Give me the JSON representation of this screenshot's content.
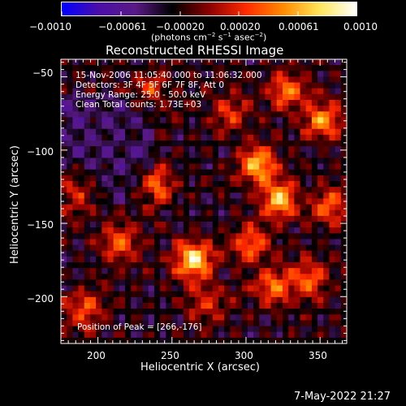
{
  "colorbar": {
    "ticks": [
      "−0.0010",
      "−0.00061",
      "−0.00020",
      "0.00020",
      "0.00061",
      "0.0010"
    ],
    "unit_label_parts": [
      "(photons cm",
      "−2",
      " s",
      "−1",
      " asec",
      "−2",
      ")"
    ],
    "colors": [
      "#0000ff",
      "#4b0ea8",
      "#5a1a86",
      "#000000",
      "#8a0000",
      "#ff2a00",
      "#ff8a00",
      "#ffe65a",
      "#ffffff"
    ]
  },
  "title": "Reconstructed RHESSI Image",
  "annotations": {
    "time_range": "15-Nov-2006 11:05:40.000 to 11:06:32.000",
    "detectors": "Detectors: 3F 4F 5F 6F 7F 8F, Att 0",
    "energy": "Energy Range: 25.0 - 50.0 keV",
    "clean": "Clean    Total counts: 1.73E+03",
    "peak": "Position of Peak = [266,-176]"
  },
  "footer_date": "7-May-2022 21:27",
  "chart_data": {
    "type": "heatmap",
    "title": "Reconstructed RHESSI Image",
    "xlabel": "Heliocentric X (arcsec)",
    "ylabel": "Heliocentric Y (arcsec)",
    "xlim": [
      175,
      368
    ],
    "ylim": [
      -232,
      -38
    ],
    "xticks": [
      200,
      250,
      300,
      350
    ],
    "yticks": [
      -50,
      -100,
      -150,
      -200
    ],
    "x_tick_labels": [
      "200",
      "250",
      "300",
      "350"
    ],
    "y_tick_labels": [
      "−50",
      "−100",
      "−150",
      "−200"
    ],
    "value_range": [
      -0.001,
      0.001
    ],
    "peak": [
      266,
      -176
    ],
    "sources": [
      {
        "x": 266,
        "y": -176,
        "intensity": 1.0
      },
      {
        "x": 310,
        "y": -110,
        "intensity": 0.8
      },
      {
        "x": 325,
        "y": -135,
        "intensity": 0.85
      },
      {
        "x": 330,
        "y": -60,
        "intensity": 0.6
      },
      {
        "x": 355,
        "y": -80,
        "intensity": 0.65
      },
      {
        "x": 235,
        "y": -60,
        "intensity": 0.45
      },
      {
        "x": 185,
        "y": -130,
        "intensity": 0.6
      },
      {
        "x": 215,
        "y": -165,
        "intensity": 0.55
      },
      {
        "x": 240,
        "y": -125,
        "intensity": 0.6
      },
      {
        "x": 305,
        "y": -165,
        "intensity": 0.55
      },
      {
        "x": 320,
        "y": -195,
        "intensity": 0.6
      },
      {
        "x": 345,
        "y": -190,
        "intensity": 0.55
      },
      {
        "x": 190,
        "y": -210,
        "intensity": 0.5
      },
      {
        "x": 275,
        "y": -205,
        "intensity": 0.4
      },
      {
        "x": 290,
        "y": -75,
        "intensity": 0.4
      },
      {
        "x": 360,
        "y": -140,
        "intensity": 0.5
      }
    ]
  }
}
